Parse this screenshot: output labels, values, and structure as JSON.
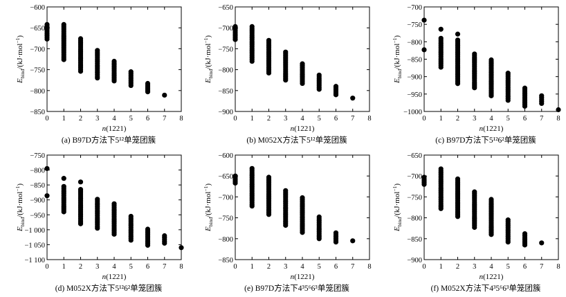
{
  "chart_data": [
    {
      "type": "scatter",
      "panel": "a",
      "caption": "(a) B97D方法下5¹²单笼团簇",
      "xlabel": "n(1221)",
      "ylabel": "E_bind/(kJ·mol⁻¹)",
      "xlim": [
        0,
        8
      ],
      "ylim": [
        -850,
        -600
      ],
      "xticks": [
        0,
        1,
        2,
        3,
        4,
        5,
        6,
        7,
        8
      ],
      "yticks": [
        -600,
        -650,
        -700,
        -750,
        -800,
        -850
      ],
      "series": [
        {
          "ranges": [
            {
              "x": 0,
              "min": -677,
              "max": -642
            },
            {
              "x": 1,
              "min": -726,
              "max": -642
            },
            {
              "x": 2,
              "min": -754,
              "max": -676
            },
            {
              "x": 3,
              "min": -770,
              "max": -704
            },
            {
              "x": 4,
              "min": -777,
              "max": -730
            },
            {
              "x": 5,
              "min": -788,
              "max": -755
            },
            {
              "x": 6,
              "min": -803,
              "max": -783
            },
            {
              "x": 7,
              "min": -811,
              "max": -811
            }
          ]
        }
      ]
    },
    {
      "type": "scatter",
      "panel": "b",
      "caption": "(b) M052X方法下5¹²单笼团簇",
      "xlabel": "n(1221)",
      "ylabel": "E_bind/(kJ·mol⁻¹)",
      "xlim": [
        0,
        8
      ],
      "ylim": [
        -900,
        -650
      ],
      "xticks": [
        0,
        1,
        2,
        3,
        4,
        5,
        6,
        7,
        8
      ],
      "yticks": [
        -650,
        -700,
        -750,
        -800,
        -850,
        -900
      ],
      "series": [
        {
          "ranges": [
            {
              "x": 0,
              "min": -728,
              "max": -697
            },
            {
              "x": 1,
              "min": -780,
              "max": -697
            },
            {
              "x": 2,
              "min": -808,
              "max": -730
            },
            {
              "x": 3,
              "min": -825,
              "max": -758
            },
            {
              "x": 4,
              "min": -833,
              "max": -786
            },
            {
              "x": 5,
              "min": -847,
              "max": -813
            },
            {
              "x": 6,
              "min": -860,
              "max": -840
            },
            {
              "x": 7,
              "min": -868,
              "max": -868
            }
          ]
        }
      ]
    },
    {
      "type": "scatter",
      "panel": "c",
      "caption": "(c) B97D方法下5¹²6²单笼团簇",
      "xlabel": "n(1221)",
      "ylabel": "E_bind/(kJ·mol⁻¹)",
      "xlim": [
        0,
        8
      ],
      "ylim": [
        -1000,
        -700
      ],
      "xticks": [
        0,
        1,
        2,
        3,
        4,
        5,
        6,
        7,
        8
      ],
      "yticks": [
        -700,
        -750,
        -800,
        -850,
        -900,
        -950,
        -1000
      ],
      "series": [
        {
          "ranges": [
            {
              "x": 0,
              "min": -738,
              "max": -738
            },
            {
              "x": 0,
              "min": -823,
              "max": -823
            },
            {
              "x": 1,
              "min": -764,
              "max": -764
            },
            {
              "x": 1,
              "min": -873,
              "max": -790
            },
            {
              "x": 2,
              "min": -778,
              "max": -778
            },
            {
              "x": 2,
              "min": -920,
              "max": -795
            },
            {
              "x": 3,
              "min": -932,
              "max": -835
            },
            {
              "x": 4,
              "min": -955,
              "max": -852
            },
            {
              "x": 5,
              "min": -968,
              "max": -890
            },
            {
              "x": 6,
              "min": -985,
              "max": -933
            },
            {
              "x": 7,
              "min": -977,
              "max": -955
            },
            {
              "x": 8,
              "min": -995,
              "max": -995
            }
          ]
        }
      ]
    },
    {
      "type": "scatter",
      "panel": "d",
      "caption": "(d) M052X方法下5¹²6²单笼团簇",
      "xlabel": "n(1221)",
      "ylabel": "E_bind/(kJ·mol⁻¹)",
      "xlim": [
        0,
        8
      ],
      "ylim": [
        -1100,
        -750
      ],
      "xticks": [
        0,
        1,
        2,
        3,
        4,
        5,
        6,
        7,
        8
      ],
      "yticks": [
        -750,
        -800,
        -850,
        -900,
        -950,
        -1000,
        -1050,
        -1100
      ],
      "ytick_labels": [
        "-750",
        "-800",
        "-850",
        "-900",
        "-950",
        "-1 000",
        "-1 050",
        "-1 100"
      ],
      "series": [
        {
          "ranges": [
            {
              "x": 0,
              "min": -795,
              "max": -795
            },
            {
              "x": 0,
              "min": -886,
              "max": -886
            },
            {
              "x": 1,
              "min": -828,
              "max": -828
            },
            {
              "x": 1,
              "min": -940,
              "max": -855
            },
            {
              "x": 2,
              "min": -840,
              "max": -840
            },
            {
              "x": 2,
              "min": -980,
              "max": -865
            },
            {
              "x": 3,
              "min": -995,
              "max": -898
            },
            {
              "x": 4,
              "min": -1015,
              "max": -913
            },
            {
              "x": 5,
              "min": -1035,
              "max": -955
            },
            {
              "x": 6,
              "min": -1052,
              "max": -998
            },
            {
              "x": 7,
              "min": -1045,
              "max": -1020
            },
            {
              "x": 8,
              "min": -1060,
              "max": -1060
            }
          ]
        }
      ]
    },
    {
      "type": "scatter",
      "panel": "e",
      "caption": "(e) B97D方法下4³5⁶6³单笼团簇",
      "xlabel": "n(1221)",
      "ylabel": "E_bind/(kJ·mol⁻¹)",
      "xlim": [
        0,
        8
      ],
      "ylim": [
        -850,
        -600
      ],
      "xticks": [
        0,
        1,
        2,
        3,
        4,
        5,
        6,
        7,
        8
      ],
      "yticks": [
        -600,
        -650,
        -700,
        -750,
        -800,
        -850
      ],
      "series": [
        {
          "ranges": [
            {
              "x": 0,
              "min": -667,
              "max": -650
            },
            {
              "x": 1,
              "min": -722,
              "max": -632
            },
            {
              "x": 2,
              "min": -742,
              "max": -653
            },
            {
              "x": 3,
              "min": -768,
              "max": -685
            },
            {
              "x": 4,
              "min": -785,
              "max": -702
            },
            {
              "x": 5,
              "min": -800,
              "max": -748
            },
            {
              "x": 6,
              "min": -808,
              "max": -786
            },
            {
              "x": 7,
              "min": -805,
              "max": -805
            }
          ]
        }
      ]
    },
    {
      "type": "scatter",
      "panel": "f",
      "caption": "(f) M052X方法下4³5⁶6³单笼团簇",
      "xlabel": "n(1221)",
      "ylabel": "E_bind/(kJ·mol⁻¹)",
      "xlim": [
        0,
        8
      ],
      "ylim": [
        -900,
        -650
      ],
      "xticks": [
        0,
        1,
        2,
        3,
        4,
        5,
        6,
        7,
        8
      ],
      "yticks": [
        -650,
        -700,
        -750,
        -800,
        -850,
        -900
      ],
      "series": [
        {
          "ranges": [
            {
              "x": 0,
              "min": -720,
              "max": -703
            },
            {
              "x": 1,
              "min": -778,
              "max": -683
            },
            {
              "x": 2,
              "min": -797,
              "max": -707
            },
            {
              "x": 3,
              "min": -823,
              "max": -738
            },
            {
              "x": 4,
              "min": -840,
              "max": -756
            },
            {
              "x": 5,
              "min": -858,
              "max": -805
            },
            {
              "x": 6,
              "min": -865,
              "max": -838
            },
            {
              "x": 7,
              "min": -860,
              "max": -860
            }
          ]
        }
      ]
    }
  ]
}
